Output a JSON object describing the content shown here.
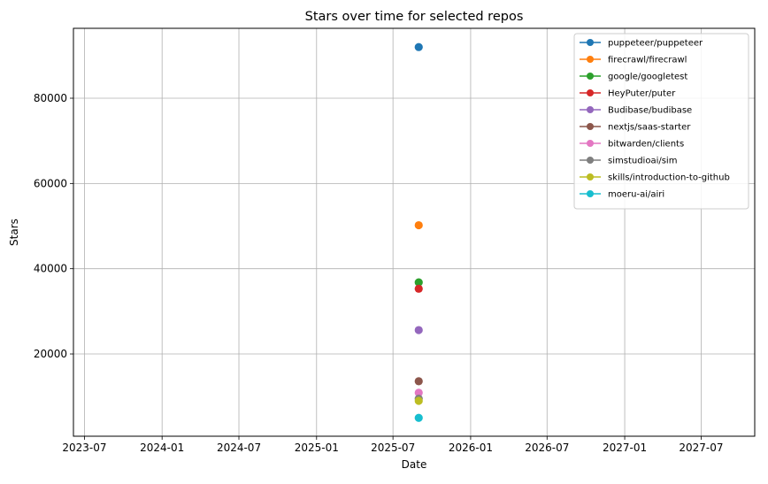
{
  "chart_data": {
    "type": "scatter",
    "title": "Stars over time for selected repos",
    "xlabel": "Date",
    "ylabel": "Stars",
    "x_ticks": [
      "2023-07",
      "2024-01",
      "2024-07",
      "2025-01",
      "2025-07",
      "2026-01",
      "2026-07",
      "2027-01",
      "2027-07"
    ],
    "y_ticks": [
      20000,
      40000,
      60000,
      80000
    ],
    "xlim": [
      "2023-06-05",
      "2027-11-05"
    ],
    "ylim": [
      700,
      96400
    ],
    "grid": true,
    "legend_position": "top-right",
    "series": [
      {
        "name": "puppeteer/puppeteer",
        "color": "#1f77b4",
        "points": [
          {
            "x": "2025-08-31",
            "y": 92000
          }
        ]
      },
      {
        "name": "firecrawl/firecrawl",
        "color": "#ff7f0e",
        "points": [
          {
            "x": "2025-08-31",
            "y": 50200
          }
        ]
      },
      {
        "name": "google/googletest",
        "color": "#2ca02c",
        "points": [
          {
            "x": "2025-08-31",
            "y": 36800
          }
        ]
      },
      {
        "name": "HeyPuter/puter",
        "color": "#d62728",
        "points": [
          {
            "x": "2025-08-31",
            "y": 35300
          }
        ]
      },
      {
        "name": "Budibase/budibase",
        "color": "#9467bd",
        "points": [
          {
            "x": "2025-08-31",
            "y": 25600
          }
        ]
      },
      {
        "name": "nextjs/saas-starter",
        "color": "#8c564b",
        "points": [
          {
            "x": "2025-08-31",
            "y": 13600
          }
        ]
      },
      {
        "name": "bitwarden/clients",
        "color": "#e377c2",
        "points": [
          {
            "x": "2025-08-31",
            "y": 10900
          }
        ]
      },
      {
        "name": "simstudioai/sim",
        "color": "#7f7f7f",
        "points": [
          {
            "x": "2025-08-31",
            "y": 9500
          }
        ]
      },
      {
        "name": "skills/introduction-to-github",
        "color": "#bcbd22",
        "points": [
          {
            "x": "2025-08-31",
            "y": 9000
          }
        ]
      },
      {
        "name": "moeru-ai/airi",
        "color": "#17becf",
        "points": [
          {
            "x": "2025-08-31",
            "y": 5000
          }
        ]
      }
    ]
  }
}
